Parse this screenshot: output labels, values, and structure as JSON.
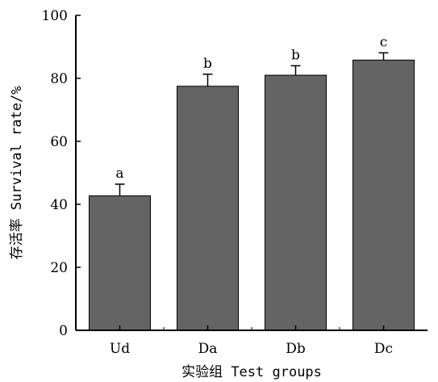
{
  "chart_data": {
    "type": "bar",
    "categories": [
      "Ud",
      "Da",
      "Db",
      "Dc"
    ],
    "values": [
      42.7,
      77.5,
      81.0,
      85.8
    ],
    "errors": [
      3.7,
      3.8,
      3.0,
      2.3
    ],
    "significance_labels": [
      "a",
      "b",
      "b",
      "c"
    ],
    "title": "",
    "xlabel": "实验组 Test groups",
    "ylabel": "存活率 Survival rate/%",
    "ylim": [
      0,
      100
    ],
    "yticks": [
      0,
      20,
      40,
      60,
      80,
      100
    ],
    "grid": false,
    "bar_color": "#646464",
    "error_color": "#000000"
  }
}
